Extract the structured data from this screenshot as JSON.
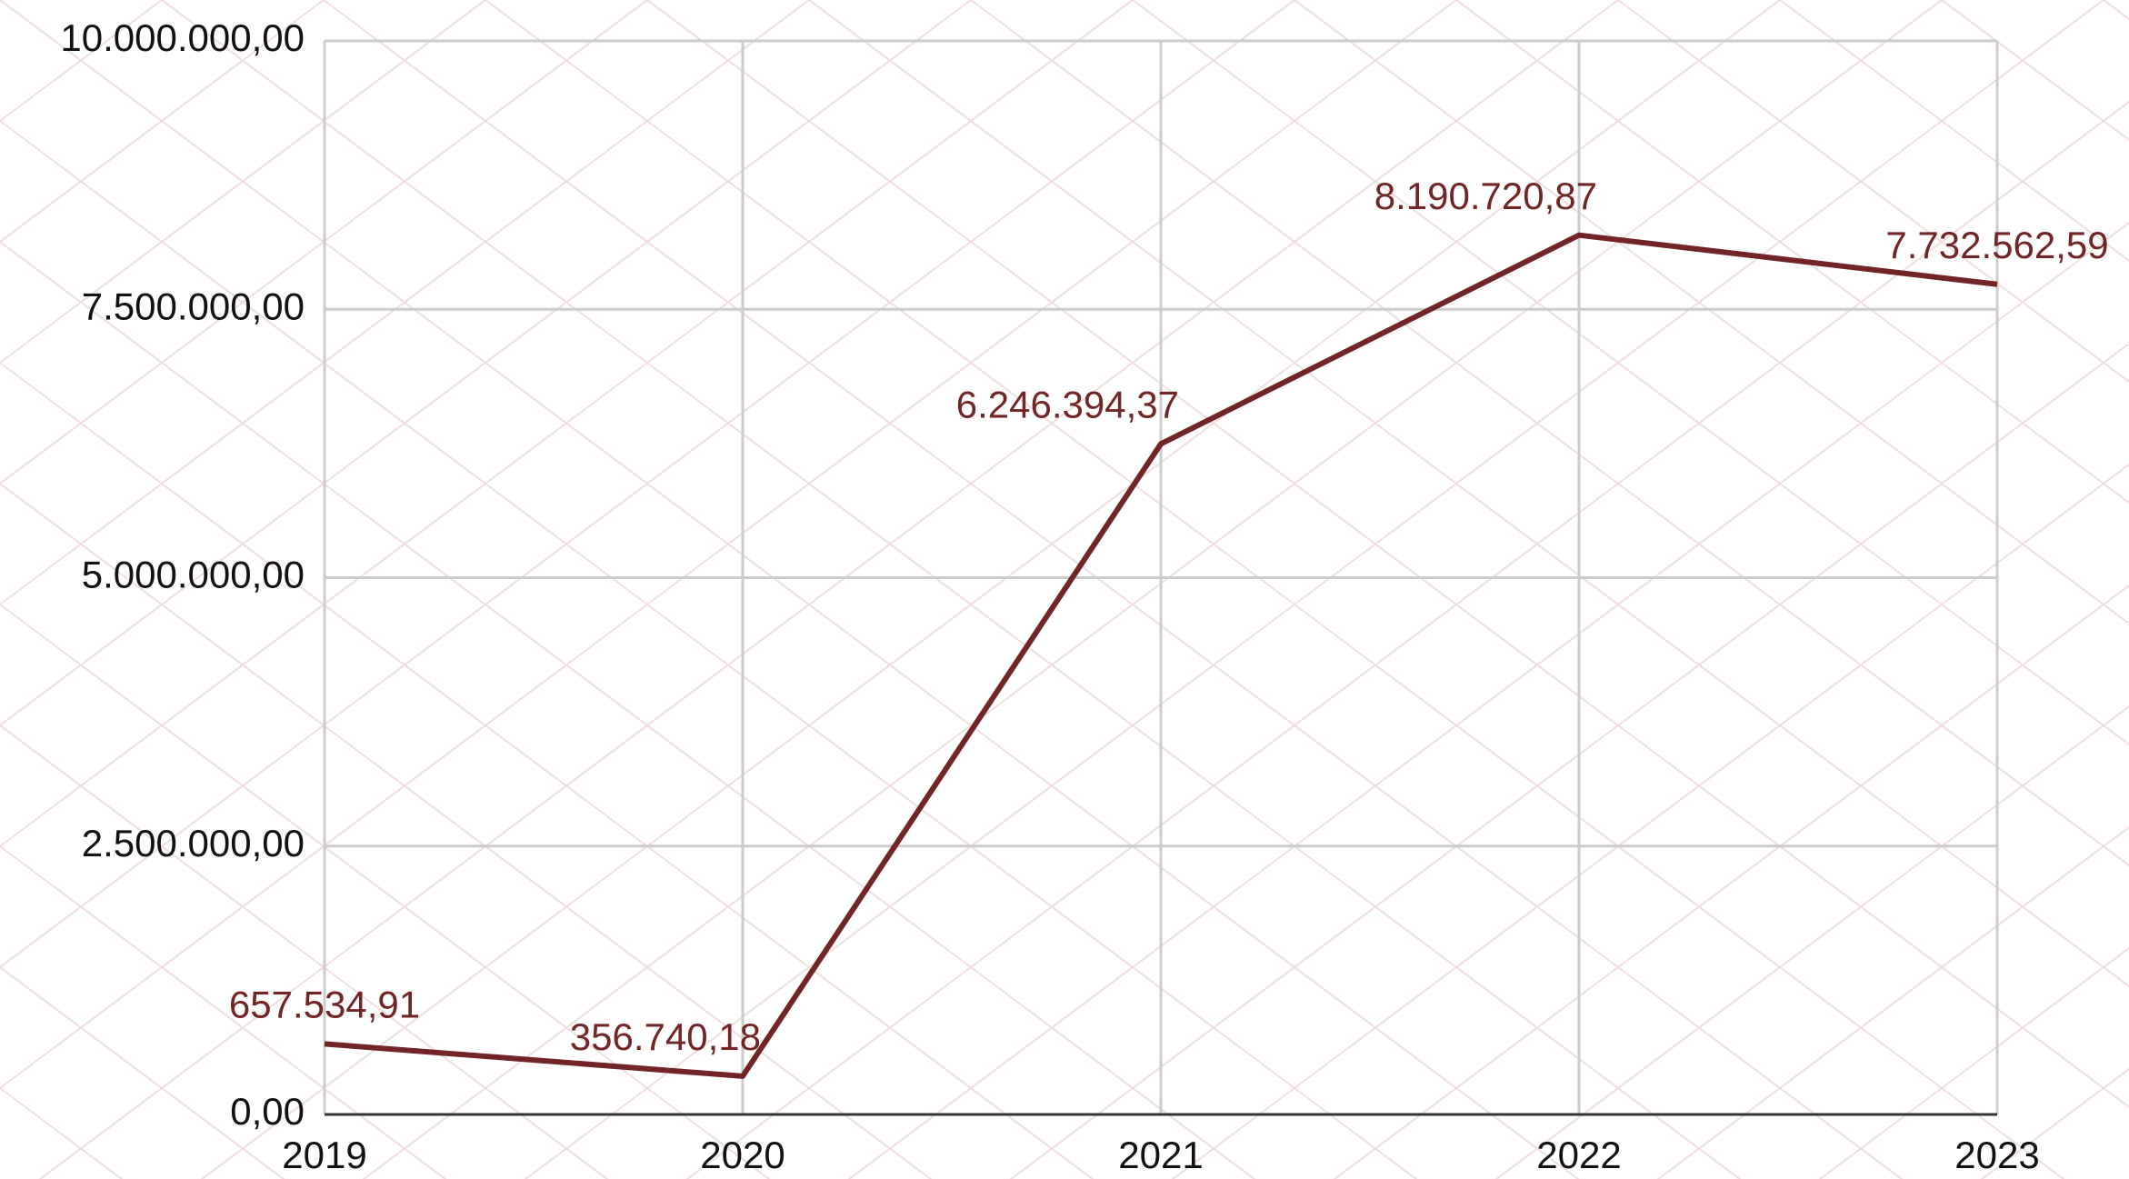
{
  "chart_data": {
    "type": "line",
    "categories": [
      "2019",
      "2020",
      "2021",
      "2022",
      "2023"
    ],
    "series": [
      {
        "color": "#722526",
        "values": [
          657534.91,
          356740.18,
          6246394.37,
          8190720.87,
          7732562.59
        ],
        "value_labels": [
          "657.534,91",
          "356.740,18",
          "6.246.394,37",
          "8.190.720,87",
          "7.732.562,59"
        ]
      }
    ],
    "ylim": [
      0,
      10000000
    ],
    "yticks": [
      {
        "value": 0,
        "label": "0,00"
      },
      {
        "value": 2500000,
        "label": "2.500.000,00"
      },
      {
        "value": 5000000,
        "label": "5.000.000,00"
      },
      {
        "value": 7500000,
        "label": "7.500.000,00"
      },
      {
        "value": 10000000,
        "label": "10.000.000,00"
      }
    ],
    "grid": true
  }
}
